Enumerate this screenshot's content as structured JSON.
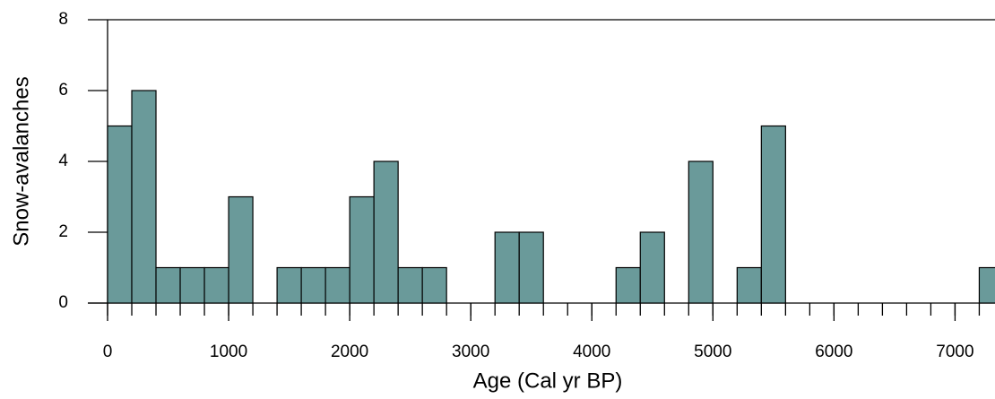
{
  "chart_data": {
    "type": "histogram",
    "xlabel": "Age (Cal yr BP)",
    "ylabel": "Snow-avalanches",
    "bins": [
      0,
      200,
      400,
      600,
      800,
      1000,
      1200,
      1400,
      1600,
      1800,
      2000,
      2200,
      2400,
      2600,
      2800,
      3000,
      3200,
      3400,
      3600,
      3800,
      4000,
      4200,
      4400,
      4600,
      4800,
      5000,
      5200,
      5400,
      5600,
      5800,
      6000,
      6200,
      6400,
      6600,
      6800,
      7000,
      7200,
      7400
    ],
    "values": [
      5,
      6,
      1,
      1,
      1,
      3,
      0,
      1,
      1,
      1,
      3,
      4,
      1,
      1,
      0,
      0,
      2,
      2,
      0,
      0,
      0,
      1,
      2,
      0,
      4,
      0,
      1,
      5,
      0,
      0,
      0,
      0,
      0,
      0,
      0,
      0,
      1
    ],
    "color": "#6a9a9a",
    "xlim": [
      0,
      7330
    ],
    "ylim": [
      0,
      8
    ],
    "xticks": [
      0,
      1000,
      2000,
      3000,
      4000,
      5000,
      6000,
      7000
    ],
    "yticks": [
      0,
      2,
      4,
      6,
      8
    ]
  }
}
